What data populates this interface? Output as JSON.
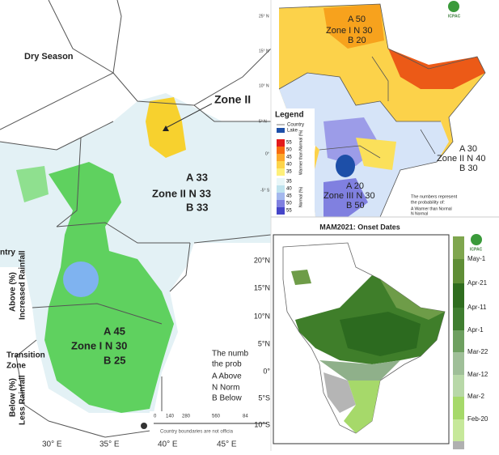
{
  "left_map": {
    "season": "Dry Season",
    "zone2_label": "Zone II",
    "zone2_a": "A 33",
    "zone2_n": "Zone II N 33",
    "zone2_b": "B 33",
    "zone1_a": "A 45",
    "zone1_n": "Zone I N 30",
    "zone1_b": "B 25",
    "partial_country": "ntry",
    "legend_above": [
      "Above (%)",
      "Increased Rainfall"
    ],
    "legend_transition": [
      "Transition",
      "Zone"
    ],
    "legend_below": [
      "Below (%)",
      "Less Rainfall"
    ],
    "note": [
      "The numb",
      "the prob",
      "A   Above",
      "N   Norm",
      "B   Below"
    ],
    "disclaimer": "Country boundaries are not officia",
    "scale": [
      "0",
      "140",
      "280",
      "560",
      "84"
    ],
    "x_labels": [
      "30° E",
      "35° E",
      "40° E",
      "45° E"
    ]
  },
  "temperature_map": {
    "lat_labels": [
      "25° N",
      "15° N",
      "10° N",
      "5° N",
      "0°",
      "-5° S"
    ],
    "zone1_a": "A 50",
    "zone1_n": "Zone I N 30",
    "zone1_b": "B 20",
    "legend_title": "Legend",
    "legend_country": "Country",
    "legend_lake": "Lake",
    "warm_scale": [
      "55",
      "50",
      "45",
      "40",
      "35"
    ],
    "warm_caption": "Warmer than Normal (%)",
    "normal_scale": [
      "35",
      "40",
      "45",
      "50",
      "55"
    ],
    "normal_caption": "Normal (%)",
    "zone2_a": "A 30",
    "zone2_n": "Zone II N 40",
    "zone2_b": "B 30",
    "zone3_a": "A 20",
    "zone3_n": "Zone III N 30",
    "zone3_b": "B 50",
    "note": [
      "The numbers represent",
      "the probability of:",
      "A   Warmer than Normal",
      "N   Normal"
    ],
    "logo": "ICPAC"
  },
  "onset_map": {
    "title": "MAM2021: Onset Dates",
    "lat_labels": [
      "20°N",
      "15°N",
      "10°N",
      "5°N",
      "0°",
      "5°S",
      "10°S"
    ],
    "colorbar": [
      "May-1",
      "Apr-21",
      "Apr-11",
      "Apr-1",
      "Mar-22",
      "Mar-12",
      "Mar-2",
      "Feb-20"
    ],
    "logo": "ICPAC"
  }
}
